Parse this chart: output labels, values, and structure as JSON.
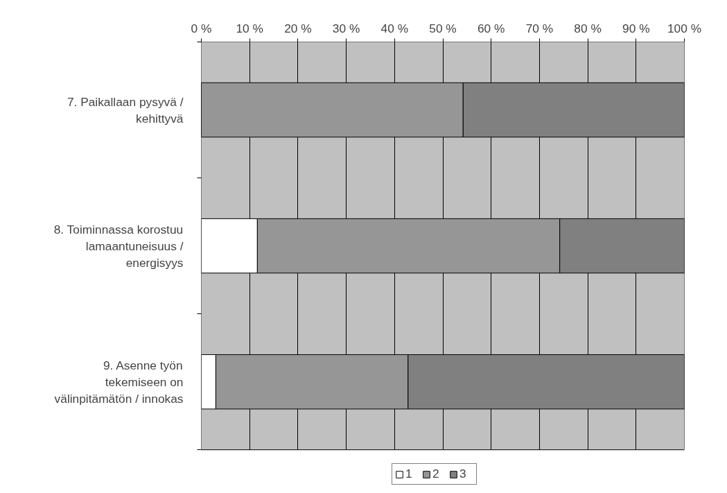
{
  "chart_data": {
    "type": "bar",
    "orientation": "horizontal",
    "stacked": true,
    "categories": [
      "7. Paikallaan pysyvä / kehittyvä",
      "8. Toiminnassa korostuu lamaantuneisuus / energisyys",
      "9. Asenne työn tekemiseen on välinpitämätön / innokas"
    ],
    "series": [
      {
        "name": "1",
        "color": "#ffffff",
        "values": [
          0,
          11.6,
          3.0
        ]
      },
      {
        "name": "2",
        "color": "#969696",
        "values": [
          54.2,
          62.6,
          39.8
        ]
      },
      {
        "name": "3",
        "color": "#808080",
        "values": [
          45.8,
          25.8,
          57.2
        ]
      }
    ],
    "xlim": [
      0,
      100
    ],
    "xticks": [
      {
        "value": 0,
        "label": "0 %"
      },
      {
        "value": 10,
        "label": "10 %"
      },
      {
        "value": 20,
        "label": "20 %"
      },
      {
        "value": 30,
        "label": "30 %"
      },
      {
        "value": 40,
        "label": "40 %"
      },
      {
        "value": 50,
        "label": "50 %"
      },
      {
        "value": 60,
        "label": "60 %"
      },
      {
        "value": 70,
        "label": "70 %"
      },
      {
        "value": 80,
        "label": "80 %"
      },
      {
        "value": 90,
        "label": "90 %"
      },
      {
        "value": 100,
        "label": "100 %"
      }
    ],
    "grid": "x",
    "legend": "bottom"
  }
}
